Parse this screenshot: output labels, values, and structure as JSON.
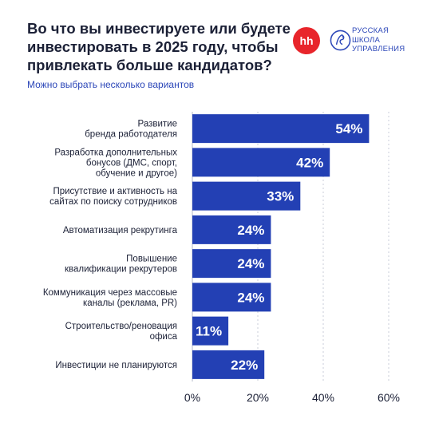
{
  "title_lines": [
    "Во что вы инвестируете или будете",
    "инвестировать в 2025 году, чтобы",
    "привлекать больше кандидатов?"
  ],
  "subtitle": "Можно выбрать несколько вариантов",
  "logos": {
    "hh": "hh",
    "rsu_lines": [
      "РУССКАЯ",
      "ШКОЛА",
      "УПРАВЛЕНИЯ"
    ]
  },
  "colors": {
    "bar": "#2340b4",
    "accent": "#2b46b8",
    "hh_red": "#e8252b",
    "grid": "#c9cdd8"
  },
  "chart_data": {
    "type": "bar",
    "orientation": "horizontal",
    "title": "Во что вы инвестируете или будете инвестировать в 2025 году, чтобы привлекать больше кандидатов?",
    "subtitle": "Можно выбрать несколько вариантов",
    "categories": [
      [
        "Развитие",
        "бренда работодателя"
      ],
      [
        "Разработка дополнительных",
        "бонусов (ДМС, спорт,",
        "обучение и другое)"
      ],
      [
        "Присутствие и активность на",
        "сайтах по поиску сотрудников"
      ],
      [
        "Автоматизация рекрутинга"
      ],
      [
        "Повышение",
        "квалификации рекрутеров"
      ],
      [
        "Коммуникация через массовые",
        "каналы (реклама, PR)"
      ],
      [
        "Строительство/реновация",
        "офиса"
      ],
      [
        "Инвестиции не планируются"
      ]
    ],
    "values": [
      54,
      42,
      33,
      24,
      24,
      24,
      11,
      22
    ],
    "value_labels": [
      "54%",
      "42%",
      "33%",
      "24%",
      "24%",
      "24%",
      "11%",
      "22%"
    ],
    "xlim": [
      0,
      60
    ],
    "xticks": [
      0,
      20,
      40,
      60
    ],
    "xtick_labels": [
      "0%",
      "20%",
      "40%",
      "60%"
    ],
    "grid": true,
    "legend": "none"
  }
}
